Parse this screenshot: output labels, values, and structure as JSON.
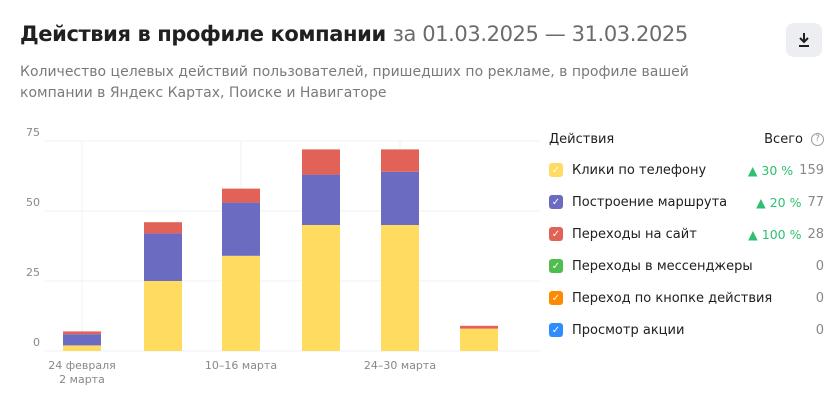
{
  "header": {
    "title": "Действия в профиле компании",
    "period": "за 01.03.2025 — 31.03.2025",
    "subtitle": "Количество целевых действий пользователей, пришедших по рекламе, в профиле вашей компании в Яндекс Картах, Поиске и Навигаторе",
    "download_icon": "download-icon"
  },
  "legend": {
    "header_label": "Действия",
    "total_label": "Всего",
    "help": "?",
    "items": [
      {
        "label": "Клики по телефону",
        "change": "▲ 30 %",
        "total": "159",
        "color": "#ffdb60"
      },
      {
        "label": "Построение маршрута",
        "change": "▲ 20 %",
        "total": "77",
        "color": "#6a6bc1"
      },
      {
        "label": "Переходы на сайт",
        "change": "▲ 100 %",
        "total": "28",
        "color": "#e26257"
      },
      {
        "label": "Переходы в мессенджеры",
        "change": "",
        "total": "0",
        "color": "#4fbd4f"
      },
      {
        "label": "Переход по кнопке действия",
        "change": "",
        "total": "0",
        "color": "#ff8a00"
      },
      {
        "label": "Просмотр акции",
        "change": "",
        "total": "0",
        "color": "#2f8dff"
      }
    ]
  },
  "chart_data": {
    "type": "bar",
    "stacked": true,
    "categories": [
      [
        "24 февраля",
        "2 марта"
      ],
      [
        ""
      ],
      [
        "10–16 марта"
      ],
      [
        ""
      ],
      [
        "24–30 марта"
      ],
      [
        ""
      ]
    ],
    "series": [
      {
        "name": "Клики по телефону",
        "color": "#ffdb60",
        "values": [
          2,
          25,
          34,
          45,
          45,
          8
        ]
      },
      {
        "name": "Построение маршрута",
        "color": "#6a6bc1",
        "values": [
          4,
          17,
          19,
          18,
          19,
          0
        ]
      },
      {
        "name": "Переходы на сайт",
        "color": "#e26257",
        "values": [
          1,
          4,
          5,
          9,
          8,
          1
        ]
      }
    ],
    "yticks": [
      0,
      25,
      50,
      75
    ],
    "ylim": [
      0,
      75
    ],
    "grid": true
  }
}
